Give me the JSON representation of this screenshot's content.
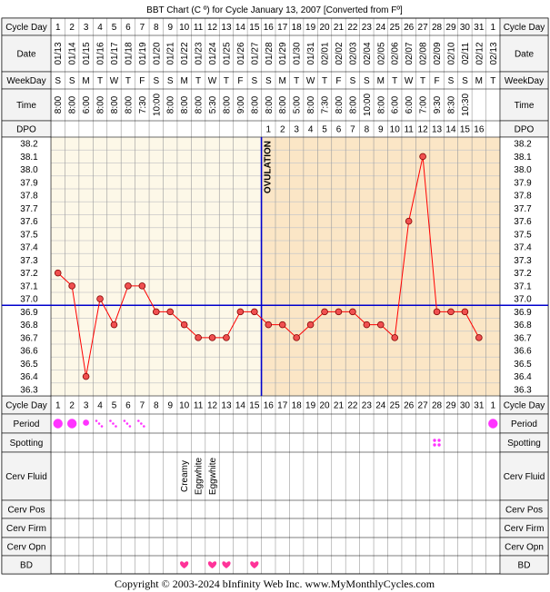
{
  "title": "BBT Chart (C º) for Cycle January 13, 2007  [Converted from Fº]",
  "footer": "Copyright © 2003-2024 bInfinity Web Inc.     www.MyMonthlyCycles.com",
  "row_labels": {
    "cycle_day": "Cycle Day",
    "date": "Date",
    "weekday": "WeekDay",
    "time": "Time",
    "dpo": "DPO",
    "period": "Period",
    "spotting": "Spotting",
    "cerv_fluid": "Cerv Fluid",
    "cerv_pos": "Cerv Pos",
    "cerv_firm": "Cerv Firm",
    "cerv_opn": "Cerv Opn",
    "bd": "BD"
  },
  "ovulation_label": "OVULATION",
  "ovulation_day": 15,
  "coverline": 36.95,
  "colors": {
    "pre_ovulation_bg": "#fdf8e8",
    "post_ovulation_bg": "#fbe6c6",
    "grid": "#c8c8c8",
    "temp_line": "#ff0000",
    "point_fill": "#f05050",
    "coverline": "#0000cc",
    "period": "#ff33ff",
    "heart": "#ff3399",
    "label_bg": "#f3f3f3"
  },
  "cycle_days": [
    "1",
    "2",
    "3",
    "4",
    "5",
    "6",
    "7",
    "8",
    "9",
    "10",
    "11",
    "12",
    "13",
    "14",
    "15",
    "16",
    "17",
    "18",
    "19",
    "20",
    "21",
    "22",
    "23",
    "24",
    "25",
    "26",
    "27",
    "28",
    "29",
    "30",
    "31",
    "1"
  ],
  "dates": [
    "01/13",
    "01/14",
    "01/15",
    "01/16",
    "01/17",
    "01/18",
    "01/19",
    "01/20",
    "01/21",
    "01/22",
    "01/23",
    "01/24",
    "01/25",
    "01/26",
    "01/27",
    "01/28",
    "01/29",
    "01/30",
    "01/31",
    "02/01",
    "02/02",
    "02/03",
    "02/04",
    "02/05",
    "02/06",
    "02/07",
    "02/08",
    "02/09",
    "02/10",
    "02/11",
    "02/12",
    "02/13"
  ],
  "weekdays": [
    "S",
    "S",
    "M",
    "T",
    "W",
    "T",
    "F",
    "S",
    "S",
    "M",
    "T",
    "W",
    "T",
    "F",
    "S",
    "S",
    "M",
    "T",
    "W",
    "T",
    "F",
    "S",
    "S",
    "M",
    "T",
    "W",
    "T",
    "F",
    "S",
    "S",
    "M",
    "T"
  ],
  "times": [
    "8:00",
    "8:00",
    "6:00",
    "8:00",
    "8:00",
    "8:00",
    "7:30",
    "10:00",
    "8:00",
    "8:00",
    "8:00",
    "5:30",
    "8:00",
    "9:00",
    "8:00",
    "8:00",
    "8:00",
    "5:00",
    "8:00",
    "7:30",
    "8:00",
    "8:00",
    "10:00",
    "8:00",
    "6:00",
    "6:00",
    "7:00",
    "9:30",
    "8:30",
    "10:30",
    "",
    ""
  ],
  "dpo": [
    "",
    "",
    "",
    "",
    "",
    "",
    "",
    "",
    "",
    "",
    "",
    "",
    "",
    "",
    "",
    "1",
    "2",
    "3",
    "4",
    "5",
    "6",
    "7",
    "8",
    "9",
    "10",
    "11",
    "12",
    "13",
    "14",
    "15",
    "16",
    ""
  ],
  "cerv_fluid": [
    "",
    "",
    "",
    "",
    "",
    "",
    "",
    "",
    "",
    "Creamy",
    "Eggwhite",
    "Eggwhite",
    "",
    "",
    "",
    "",
    "",
    "",
    "",
    "",
    "",
    "",
    "",
    "",
    "",
    "",
    "",
    "",
    "",
    "",
    "",
    ""
  ],
  "period": [
    "heavy",
    "heavy",
    "medium",
    "light",
    "light",
    "light",
    "light",
    "",
    "",
    "",
    "",
    "",
    "",
    "",
    "",
    "",
    "",
    "",
    "",
    "",
    "",
    "",
    "",
    "",
    "",
    "",
    "",
    "",
    "",
    "",
    "",
    "heavy"
  ],
  "spotting": [
    "",
    "",
    "",
    "",
    "",
    "",
    "",
    "",
    "",
    "",
    "",
    "",
    "",
    "",
    "",
    "",
    "",
    "",
    "",
    "",
    "",
    "",
    "",
    "",
    "",
    "",
    "",
    "spot",
    "",
    "",
    "",
    ""
  ],
  "bd": [
    "",
    "",
    "",
    "",
    "",
    "",
    "",
    "",
    "",
    "bd",
    "",
    "bd",
    "bd",
    "",
    "bd",
    "",
    "",
    "",
    "",
    "",
    "",
    "",
    "",
    "",
    "",
    "",
    "",
    "",
    "",
    "",
    "",
    ""
  ],
  "chart_data": {
    "type": "line",
    "x": [
      1,
      2,
      3,
      4,
      5,
      6,
      7,
      8,
      9,
      10,
      11,
      12,
      13,
      14,
      15,
      16,
      17,
      18,
      19,
      20,
      21,
      22,
      23,
      24,
      25,
      26,
      27,
      28,
      29,
      30,
      31
    ],
    "series": [
      {
        "values": [
          37.2,
          37.1,
          36.4,
          37.0,
          36.8,
          37.1,
          37.1,
          36.9,
          36.9,
          36.8,
          36.7,
          36.7,
          36.7,
          36.9,
          36.9,
          36.8,
          36.8,
          36.7,
          36.8,
          36.9,
          36.9,
          36.9,
          36.8,
          36.8,
          36.7,
          37.6,
          38.1,
          36.9,
          36.9,
          36.9,
          36.7
        ]
      }
    ],
    "yticks": [
      38.2,
      38.1,
      38.0,
      37.9,
      37.8,
      37.7,
      37.6,
      37.5,
      37.4,
      37.3,
      37.2,
      37.1,
      37.0,
      36.9,
      36.8,
      36.7,
      36.6,
      36.5,
      36.4,
      36.3
    ],
    "ylim": [
      36.3,
      38.2
    ],
    "grid": true
  }
}
